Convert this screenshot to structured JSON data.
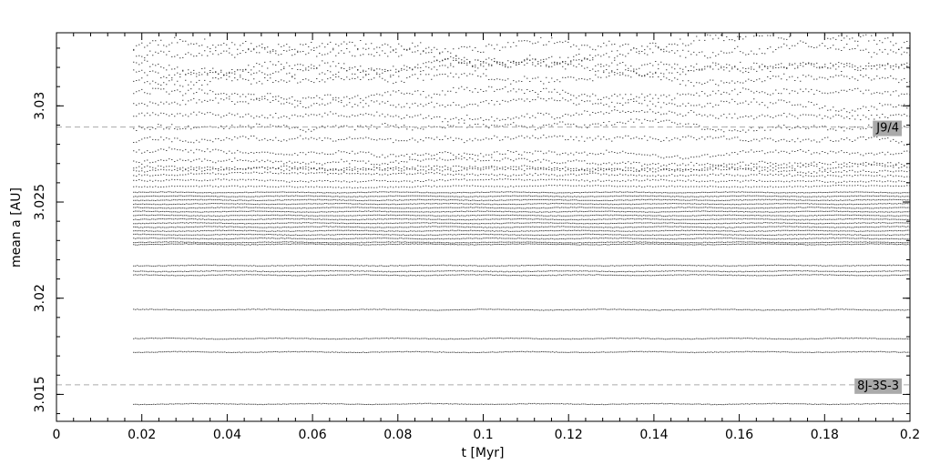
{
  "chart_data": {
    "type": "scatter",
    "title": "",
    "xlabel": "t [Myr]",
    "ylabel": "mean a [AU]",
    "xlim": [
      0,
      0.2
    ],
    "ylim": [
      3.0136,
      3.0338
    ],
    "x_ticks": [
      {
        "value": 0,
        "label": "0"
      },
      {
        "value": 0.02,
        "label": "0.02"
      },
      {
        "value": 0.04,
        "label": "0.04"
      },
      {
        "value": 0.06,
        "label": "0.06"
      },
      {
        "value": 0.08,
        "label": "0.08"
      },
      {
        "value": 0.1,
        "label": "0.1"
      },
      {
        "value": 0.12,
        "label": "0.12"
      },
      {
        "value": 0.14,
        "label": "0.14"
      },
      {
        "value": 0.16,
        "label": "0.16"
      },
      {
        "value": 0.18,
        "label": "0.18"
      },
      {
        "value": 0.2,
        "label": "0.2"
      }
    ],
    "y_ticks": [
      {
        "value": 3.015,
        "label": "3.015"
      },
      {
        "value": 3.02,
        "label": "3.02"
      },
      {
        "value": 3.025,
        "label": "3.025"
      },
      {
        "value": 3.03,
        "label": "3.03"
      }
    ],
    "grid": false,
    "time_span": [
      0.018,
      0.2
    ],
    "resonances": [
      {
        "label": "J9/4",
        "a": 3.0289,
        "color": "#aaaaaa",
        "label_bg": "#aaaaaa"
      },
      {
        "label": "8J-3S-3",
        "a": 3.0155,
        "color": "#aaaaaa",
        "label_bg": "#aaaaaa"
      }
    ],
    "stable_tracks": [
      3.0145,
      3.0172,
      3.0179,
      3.0194,
      3.0212,
      3.0214,
      3.0217,
      3.0228,
      3.0229,
      3.0231,
      3.0233,
      3.0235,
      3.0237,
      3.0239,
      3.0241,
      3.0243,
      3.0245,
      3.0247,
      3.0249,
      3.0251,
      3.0253,
      3.0255
    ],
    "diffusing_tracks": [
      3.0258,
      3.0261,
      3.0264,
      3.0266,
      3.0268,
      3.0271,
      3.0276,
      3.0282,
      3.0288,
      3.0295,
      3.0301,
      3.0306,
      3.0313,
      3.0318,
      3.0322,
      3.0327,
      3.0331
    ],
    "point_color": "#000000"
  }
}
